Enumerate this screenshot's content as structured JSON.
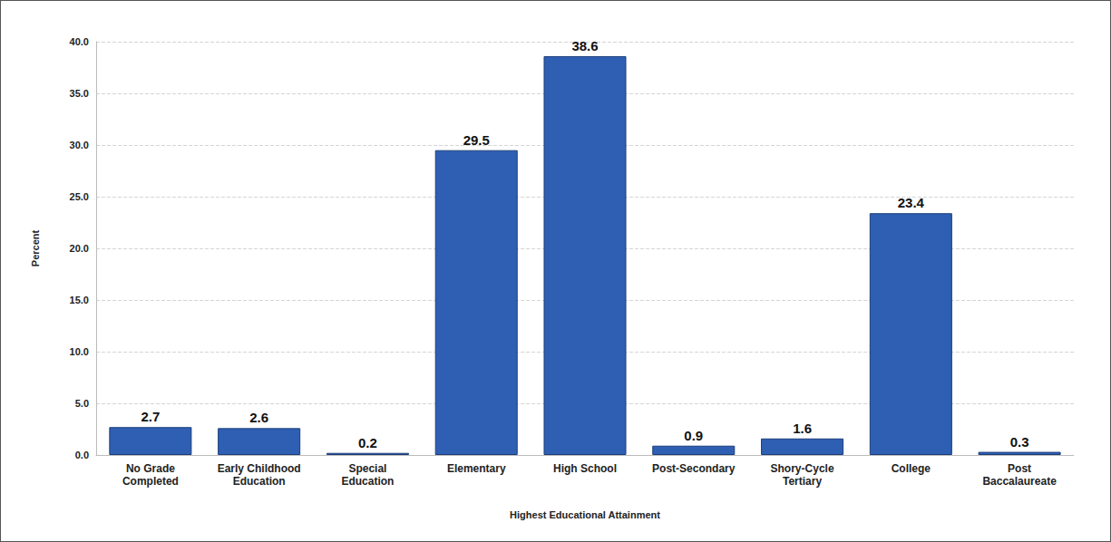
{
  "chart_data": {
    "type": "bar",
    "xlabel": "Highest Educational Attainment",
    "ylabel": "Percent",
    "categories": [
      "No Grade Completed",
      "Early Childhood Education",
      "Special Education",
      "Elementary",
      "High School",
      "Post-Secondary",
      "Shory-Cycle Tertiary",
      "College",
      "Post Baccalaureate"
    ],
    "values": [
      2.7,
      2.6,
      0.2,
      29.5,
      38.6,
      0.9,
      1.6,
      23.4,
      0.3
    ],
    "color": "#2f5fb3",
    "ylim": [
      0,
      40
    ],
    "yticks": [
      {
        "value": 0,
        "label": "0.0"
      },
      {
        "value": 5,
        "label": "5.0"
      },
      {
        "value": 10,
        "label": "10.0"
      },
      {
        "value": 15,
        "label": "15.0"
      },
      {
        "value": 20,
        "label": "20.0"
      },
      {
        "value": 25,
        "label": "25.0"
      },
      {
        "value": 30,
        "label": "30.0"
      },
      {
        "value": 35,
        "label": "35.0"
      },
      {
        "value": 40,
        "label": "40.0"
      }
    ],
    "grid": true,
    "data_labels": true
  }
}
